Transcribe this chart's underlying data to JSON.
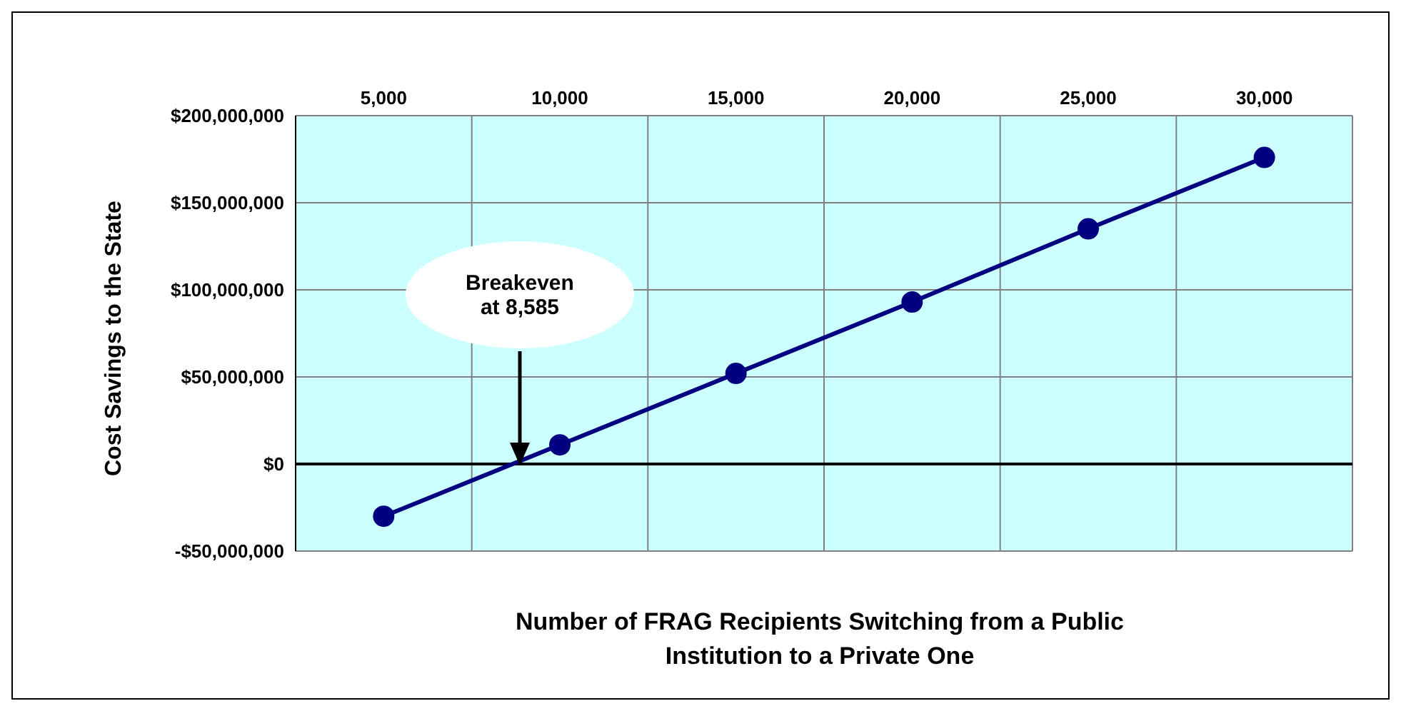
{
  "chart_data": {
    "type": "line",
    "ylabel": "Cost Savings to the State",
    "xlabel": "Number of FRAG Recipients Switching from a Public Institution to a Private One",
    "categories": [
      "5,000",
      "10,000",
      "15,000",
      "20,000",
      "25,000",
      "30,000"
    ],
    "series": [
      {
        "color": "#000080",
        "values": [
          -30000000,
          11000000,
          52000000,
          93000000,
          135000000,
          176000000
        ]
      }
    ],
    "ylim": [
      -50000000,
      200000000
    ],
    "yticks": [
      {
        "value": -50000000,
        "label": "-$50,000,000"
      },
      {
        "value": 0,
        "label": "$0"
      },
      {
        "value": 50000000,
        "label": "$50,000,000"
      },
      {
        "value": 100000000,
        "label": "$100,000,000"
      },
      {
        "value": 150000000,
        "label": "$150,000,000"
      },
      {
        "value": 200000000,
        "label": "$200,000,000"
      }
    ],
    "grid": true,
    "marker": "circle",
    "line_style": "solid",
    "ref_lines": [
      {
        "axis": "y",
        "value": 0,
        "color": "#000000"
      }
    ],
    "annotations": [
      "Breakeven at 8,585"
    ]
  }
}
